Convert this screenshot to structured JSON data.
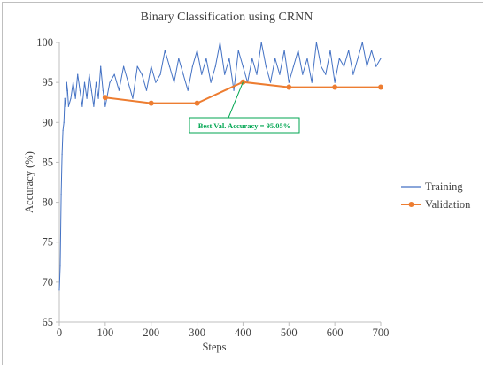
{
  "chart_data": {
    "type": "line",
    "title": "Binary Classification using CRNN",
    "xlabel": "Steps",
    "ylabel": "Accuracy (%)",
    "xlim": [
      0,
      700
    ],
    "ylim": [
      65,
      100
    ],
    "xticks": [
      0,
      100,
      200,
      300,
      400,
      500,
      600,
      700
    ],
    "yticks": [
      65,
      70,
      75,
      80,
      85,
      90,
      95,
      100
    ],
    "grid": false,
    "legend_position": "right",
    "series": [
      {
        "name": "Training",
        "color": "#4472c4",
        "x": [
          0,
          2,
          4,
          6,
          8,
          10,
          12,
          14,
          16,
          18,
          20,
          25,
          30,
          35,
          40,
          45,
          50,
          55,
          60,
          65,
          70,
          75,
          80,
          85,
          90,
          95,
          100,
          110,
          120,
          130,
          140,
          150,
          160,
          170,
          180,
          190,
          200,
          210,
          220,
          230,
          240,
          250,
          260,
          270,
          280,
          290,
          300,
          310,
          320,
          330,
          340,
          350,
          360,
          370,
          380,
          390,
          400,
          410,
          420,
          430,
          440,
          450,
          460,
          470,
          480,
          490,
          500,
          510,
          520,
          530,
          540,
          550,
          560,
          570,
          580,
          590,
          600,
          610,
          620,
          630,
          640,
          650,
          660,
          670,
          680,
          690,
          700
        ],
        "y": [
          69,
          72,
          81,
          86,
          89,
          90,
          93,
          92,
          95,
          94,
          92,
          93,
          95,
          93,
          96,
          94,
          92,
          95,
          93,
          96,
          94,
          92,
          95,
          93,
          97,
          94,
          92,
          95,
          96,
          94,
          97,
          95,
          93,
          97,
          96,
          94,
          97,
          95,
          96,
          99,
          97,
          95,
          98,
          96,
          94,
          97,
          99,
          96,
          98,
          95,
          97,
          100,
          96,
          98,
          94,
          99,
          97,
          95,
          98,
          96,
          100,
          97,
          95,
          98,
          96,
          99,
          95,
          97,
          99,
          96,
          98,
          95,
          100,
          97,
          96,
          99,
          95,
          98,
          97,
          99,
          96,
          98,
          100,
          97,
          99,
          97,
          98
        ]
      },
      {
        "name": "Validation",
        "color": "#ed7d31",
        "x": [
          100,
          200,
          300,
          400,
          500,
          600,
          700
        ],
        "y": [
          93.1,
          92.4,
          92.4,
          95.05,
          94.4,
          94.4,
          94.4
        ]
      }
    ],
    "annotation": {
      "text": "Best Val. Accuracy = 95.05%",
      "x": 400,
      "y": 95.05,
      "color": "#00a651"
    }
  }
}
